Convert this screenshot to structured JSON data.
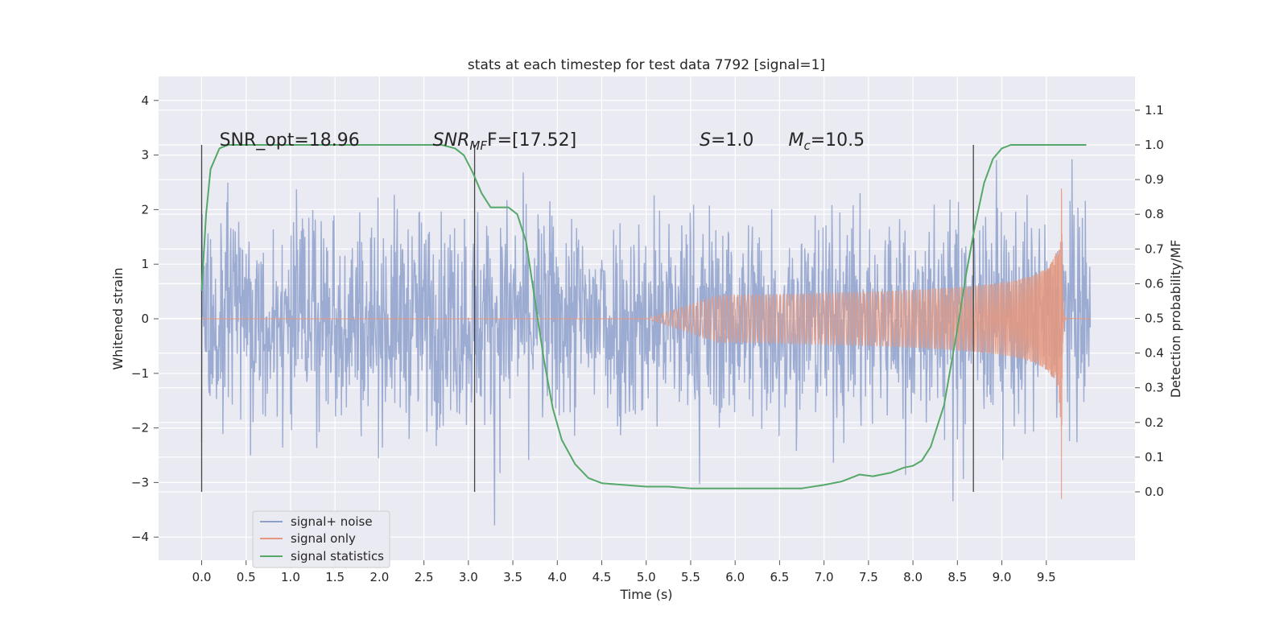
{
  "chart_data": {
    "type": "line",
    "title": "stats at each timestep for test data 7792 [signal=1]",
    "xlabel": "Time (s)",
    "ylabel": "Whitened strain",
    "ylabel_right": "Detection probability/MF",
    "xlim": [
      -0.5,
      10.5
    ],
    "ylim": [
      -4.4,
      4.45
    ],
    "ylim_right": [
      -0.2,
      1.2
    ],
    "x_ticks": [
      0.0,
      0.5,
      1.0,
      1.5,
      2.0,
      2.5,
      3.0,
      3.5,
      4.0,
      4.5,
      5.0,
      5.5,
      6.0,
      6.5,
      7.0,
      7.5,
      8.0,
      8.5,
      9.0,
      9.5
    ],
    "x_tick_labels": [
      "0.0",
      "0.5",
      "1.0",
      "1.5",
      "2.0",
      "2.5",
      "3.0",
      "3.5",
      "4.0",
      "4.5",
      "5.0",
      "5.5",
      "6.0",
      "6.5",
      "7.0",
      "7.5",
      "8.0",
      "8.5",
      "9.0",
      "9.5"
    ],
    "y_ticks": [
      4,
      3,
      2,
      1,
      0,
      -1,
      -2,
      -3,
      -4
    ],
    "y_tick_labels": [
      "4",
      "3",
      "2",
      "1",
      "0",
      "−1",
      "−2",
      "−3",
      "−4"
    ],
    "y_right_ticks": [
      1.1,
      1.0,
      0.9,
      0.8,
      0.7,
      0.6,
      0.5,
      0.4,
      0.3,
      0.2,
      0.1,
      0.0
    ],
    "y_right_tick_labels": [
      "1.1",
      "1.0",
      "0.9",
      "0.8",
      "0.7",
      "0.6",
      "0.5",
      "0.4",
      "0.3",
      "0.2",
      "0.1",
      "0.0"
    ],
    "grid": true,
    "legend_position": "lower-left",
    "series": [
      {
        "name": "signal+ noise",
        "color": "#8da0cb",
        "axis": "left",
        "description_points": [
          [
            0.0,
            0.0
          ],
          [
            10.0,
            0.0
          ]
        ],
        "envelope": {
          "x_range": [
            0.0,
            10.0
          ],
          "typical_abs": 1.9,
          "max": 4.1,
          "min": -4.05
        }
      },
      {
        "name": "signal only",
        "color": "#e5967e",
        "axis": "left",
        "chirp": {
          "start": 5.0,
          "merger": 9.67,
          "end": 10.0,
          "peak_amplitude": 2.4
        }
      },
      {
        "name": "signal statistics",
        "color": "#55a868",
        "axis": "right",
        "x": [
          0.0,
          0.05,
          0.1,
          0.2,
          0.3,
          0.5,
          1.0,
          1.5,
          2.0,
          2.5,
          2.7,
          2.85,
          2.95,
          3.05,
          3.15,
          3.25,
          3.35,
          3.45,
          3.55,
          3.65,
          3.75,
          3.85,
          3.95,
          4.05,
          4.2,
          4.35,
          4.5,
          4.75,
          5.0,
          5.25,
          5.5,
          5.75,
          6.0,
          6.25,
          6.5,
          6.75,
          7.0,
          7.2,
          7.4,
          7.55,
          7.75,
          7.9,
          8.0,
          8.1,
          8.2,
          8.35,
          8.5,
          8.6,
          8.7,
          8.8,
          8.9,
          9.0,
          9.1,
          9.3,
          9.6,
          9.95
        ],
        "y": [
          0.58,
          0.8,
          0.93,
          0.99,
          1.0,
          1.0,
          1.0,
          1.0,
          1.0,
          1.0,
          1.0,
          0.99,
          0.97,
          0.92,
          0.86,
          0.82,
          0.82,
          0.82,
          0.8,
          0.72,
          0.55,
          0.38,
          0.24,
          0.15,
          0.08,
          0.04,
          0.025,
          0.02,
          0.015,
          0.015,
          0.01,
          0.01,
          0.01,
          0.01,
          0.01,
          0.01,
          0.02,
          0.03,
          0.05,
          0.045,
          0.055,
          0.07,
          0.075,
          0.09,
          0.13,
          0.25,
          0.47,
          0.63,
          0.77,
          0.89,
          0.96,
          0.99,
          1.0,
          1.0,
          1.0,
          1.0
        ]
      }
    ],
    "vertical_lines": [
      0.0,
      3.07,
      8.68
    ],
    "annotations": [
      {
        "x": 0.2,
        "text": "SNR_opt=18.96"
      },
      {
        "x": 2.6,
        "text": "SNR",
        "sub": "MF",
        "tail": "F=[17.52]",
        "italic_head": true
      },
      {
        "x": 5.6,
        "text": "S",
        "sub": "",
        "tail": "=1.0",
        "italic_head": true
      },
      {
        "x": 6.6,
        "text": "M",
        "sub": "c",
        "tail": "=10.5",
        "italic_head": true
      }
    ]
  }
}
